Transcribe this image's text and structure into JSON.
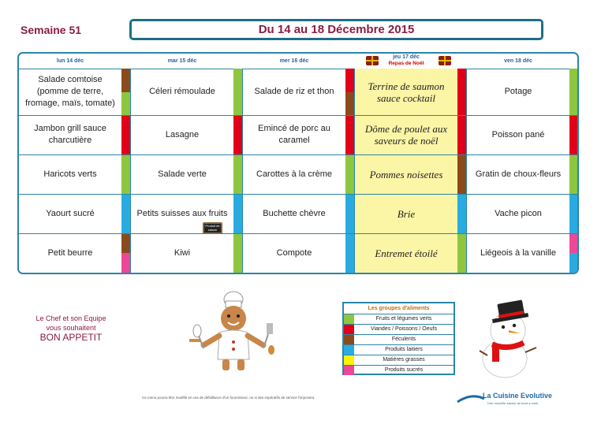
{
  "header": {
    "week": "Semaine 51",
    "dates": "Du 14 au 18 Décembre 2015"
  },
  "days": [
    {
      "label": "lun 14 déc"
    },
    {
      "label": "mar 15 déc"
    },
    {
      "label": "mer 16 déc"
    },
    {
      "label": "jeu 17 déc",
      "sub": "Repas de Noël"
    },
    {
      "label": "ven 18 déc"
    }
  ],
  "meals": [
    [
      "Salade comtoise (pomme de terre, fromage, maïs, tomate)",
      "Céleri rémoulade",
      "Salade de riz et thon",
      "Terrine de saumon sauce cocktail",
      "Potage"
    ],
    [
      "Jambon grill sauce charcutière",
      "Lasagne",
      "Emincé de porc au caramel",
      "Dôme de poulet aux saveurs de noël",
      "Poisson pané"
    ],
    [
      "Haricots verts",
      "Salade verte",
      "Carottes à la crème",
      "Pommes noisettes",
      "Gratin de choux-fleurs"
    ],
    [
      "Yaourt sucré",
      "Petits suisses aux fruits",
      "Buchette chèvre",
      "Brie",
      "Vache picon"
    ],
    [
      "Petit beurre",
      "Kiwi",
      "Compote",
      "Entremet étoilé",
      "Liégeois à la vanille"
    ]
  ],
  "colors": {
    "fruits_legumes": "#8dc63f",
    "viandes": "#e0001b",
    "feculents": "#8b4a1c",
    "laitiers": "#29abe2",
    "matieres_grasses": "#fff200",
    "sucres": "#ec4899"
  },
  "slate_text": "Produit de saison",
  "chef_message": {
    "line1": "Le Chef et son Equipe",
    "line2": "vous souhaitent",
    "line3": "BON APPETIT"
  },
  "legend": {
    "title": "Les groupes d'aliments",
    "items": [
      {
        "label": "Fruits et légumes verts",
        "color": "#8dc63f"
      },
      {
        "label": "Viandes / Poissons / Oeufs",
        "color": "#e0001b"
      },
      {
        "label": "Féculents",
        "color": "#8b4a1c"
      },
      {
        "label": "Produits laitiers",
        "color": "#29abe2"
      },
      {
        "label": "Matières grasses",
        "color": "#fff200"
      },
      {
        "label": "Produits sucrés",
        "color": "#ec4899"
      }
    ]
  },
  "disclaimer": "Ce menu pourra être modifié en cas de défaillance d'un fournisseur, ou si des impératifs de service l'imposent.",
  "logo": {
    "name": "La Cuisine Evolutive",
    "tagline": "Une nouvelle saveur au bord à vous"
  }
}
